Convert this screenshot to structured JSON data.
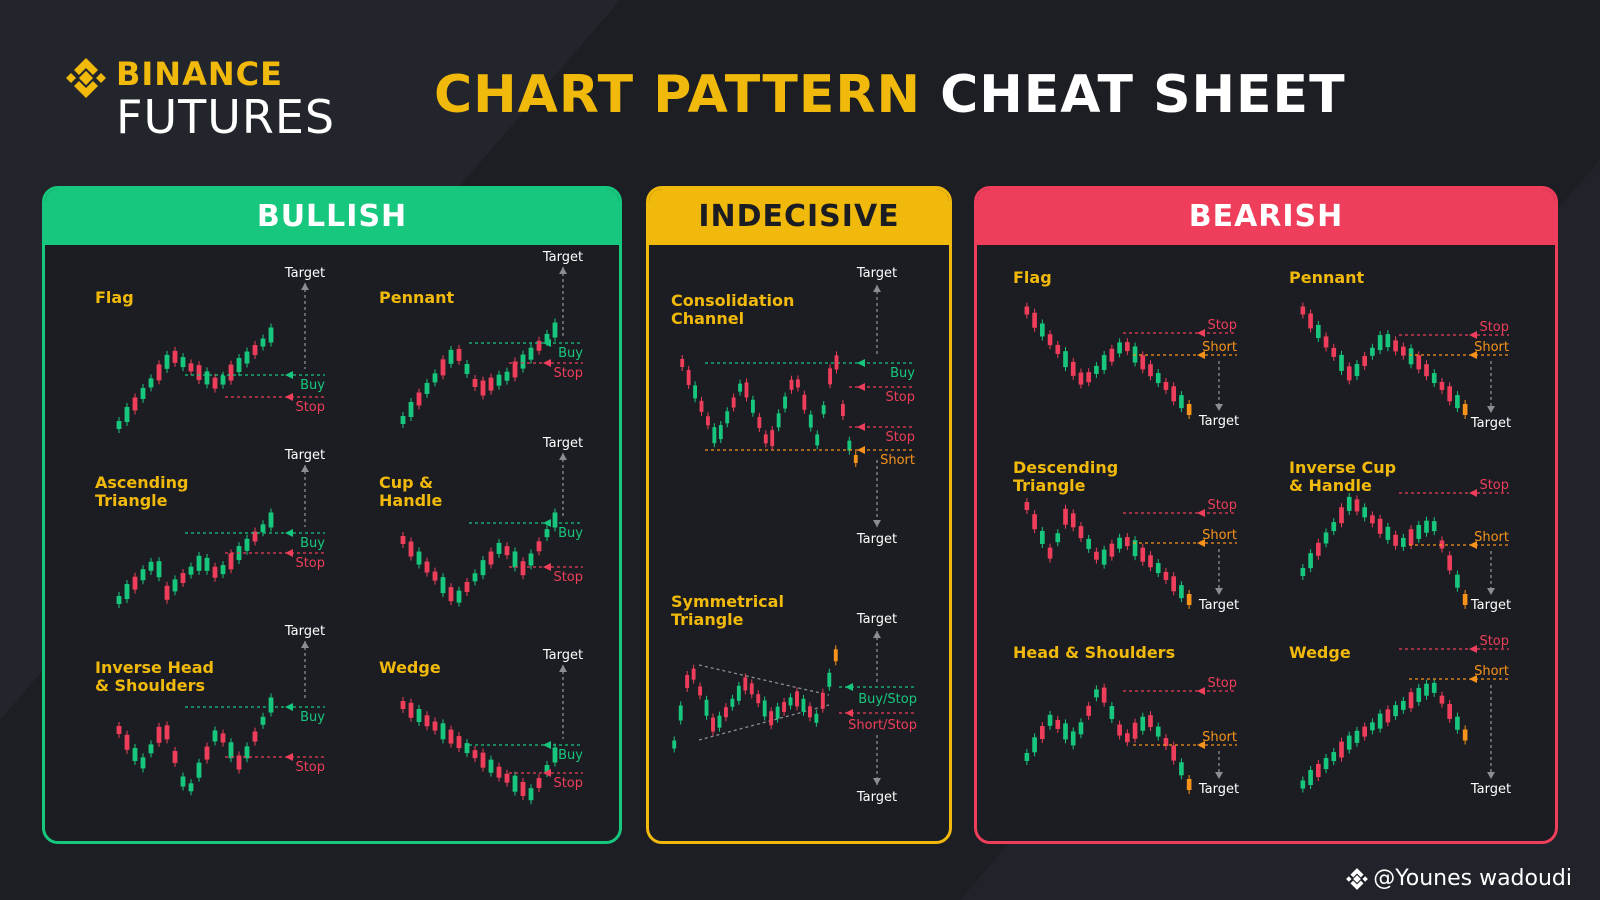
{
  "colors": {
    "bull": "#18c77e",
    "bear": "#ee3e5b",
    "yellow": "#f0b90b",
    "orange": "#f7931a",
    "bg": "#1c1e23",
    "text": "#ffffff"
  },
  "logo": {
    "top": "BINANCE",
    "bottom": "FUTURES",
    "icon": "binance-diamond-icon"
  },
  "title": {
    "highlight": "CHART PATTERN",
    "rest": "CHEAT SHEET"
  },
  "panels": {
    "bullish": {
      "header": "BULLISH",
      "patterns": [
        {
          "name": "Flag",
          "lines": [
            "Flag"
          ],
          "labels": {
            "target": "Target",
            "buy": "Buy",
            "stop": "Stop"
          }
        },
        {
          "name": "Pennant",
          "lines": [
            "Pennant"
          ],
          "labels": {
            "target": "Target",
            "buy": "Buy",
            "stop": "Stop"
          }
        },
        {
          "name": "Ascending Triangle",
          "lines": [
            "Ascending",
            "Triangle"
          ],
          "labels": {
            "target": "Target",
            "buy": "Buy",
            "stop": "Stop"
          }
        },
        {
          "name": "Cup & Handle",
          "lines": [
            "Cup &",
            "Handle"
          ],
          "labels": {
            "target": "Target",
            "buy": "Buy",
            "stop": "Stop"
          }
        },
        {
          "name": "Inverse Head & Shoulders",
          "lines": [
            "Inverse Head",
            "& Shoulders"
          ],
          "labels": {
            "target": "Target",
            "buy": "Buy",
            "stop": "Stop"
          }
        },
        {
          "name": "Wedge",
          "lines": [
            "Wedge"
          ],
          "labels": {
            "target": "Target",
            "buy": "Buy",
            "stop": "Stop"
          }
        }
      ]
    },
    "indecisive": {
      "header": "INDECISIVE",
      "patterns": [
        {
          "name": "Consolidation Channel",
          "lines": [
            "Consolidation",
            "Channel"
          ],
          "labels": {
            "target_top": "Target",
            "buy": "Buy",
            "stop_top": "Stop",
            "stop_bottom": "Stop",
            "short": "Short",
            "target_bottom": "Target"
          }
        },
        {
          "name": "Symmetrical Triangle",
          "lines": [
            "Symmetrical",
            "Triangle"
          ],
          "labels": {
            "target_top": "Target",
            "buy_stop": "Buy/Stop",
            "short_stop": "Short/Stop",
            "target_bottom": "Target"
          }
        }
      ]
    },
    "bearish": {
      "header": "BEARISH",
      "patterns": [
        {
          "name": "Flag",
          "lines": [
            "Flag"
          ],
          "labels": {
            "stop": "Stop",
            "short": "Short",
            "target": "Target"
          }
        },
        {
          "name": "Pennant",
          "lines": [
            "Pennant"
          ],
          "labels": {
            "stop": "Stop",
            "short": "Short",
            "target": "Target"
          }
        },
        {
          "name": "Descending Triangle",
          "lines": [
            "Descending",
            "Triangle"
          ],
          "labels": {
            "stop": "Stop",
            "short": "Short",
            "target": "Target"
          }
        },
        {
          "name": "Inverse Cup & Handle",
          "lines": [
            "Inverse Cup",
            "& Handle"
          ],
          "labels": {
            "stop": "Stop",
            "short": "Short",
            "target": "Target"
          }
        },
        {
          "name": "Head & Shoulders",
          "lines": [
            "Head & Shoulders"
          ],
          "labels": {
            "stop": "Stop",
            "short": "Short",
            "target": "Target"
          }
        },
        {
          "name": "Wedge",
          "lines": [
            "Wedge"
          ],
          "labels": {
            "stop": "Stop",
            "short": "Short",
            "target": "Target"
          }
        }
      ]
    }
  },
  "watermark": {
    "text": "@Younes wadoudi",
    "icon": "binance-diamond-icon"
  }
}
